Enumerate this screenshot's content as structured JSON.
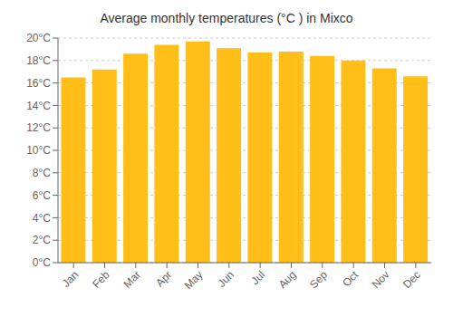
{
  "chart_data": {
    "type": "bar",
    "title": "Average monthly temperatures (°C ) in Mixco",
    "categories": [
      "Jan",
      "Feb",
      "Mar",
      "Apr",
      "May",
      "Jun",
      "Jul",
      "Aug",
      "Sep",
      "Oct",
      "Nov",
      "Dec"
    ],
    "values": [
      16.5,
      17.2,
      18.6,
      19.4,
      19.7,
      19.1,
      18.7,
      18.8,
      18.4,
      18.0,
      17.3,
      16.6
    ],
    "color": "#FFBE18",
    "ylim": [
      0,
      20
    ],
    "yticks": [
      {
        "value": 0,
        "label": "0°C"
      },
      {
        "value": 2,
        "label": "2°C"
      },
      {
        "value": 4,
        "label": "4°C"
      },
      {
        "value": 6,
        "label": "6°C"
      },
      {
        "value": 8,
        "label": "8°C"
      },
      {
        "value": 10,
        "label": "10°C"
      },
      {
        "value": 12,
        "label": "12°C"
      },
      {
        "value": 14,
        "label": "14°C"
      },
      {
        "value": 16,
        "label": "16°C"
      },
      {
        "value": 18,
        "label": "18°C"
      },
      {
        "value": 20,
        "label": "20°C"
      }
    ],
    "grid": true
  }
}
